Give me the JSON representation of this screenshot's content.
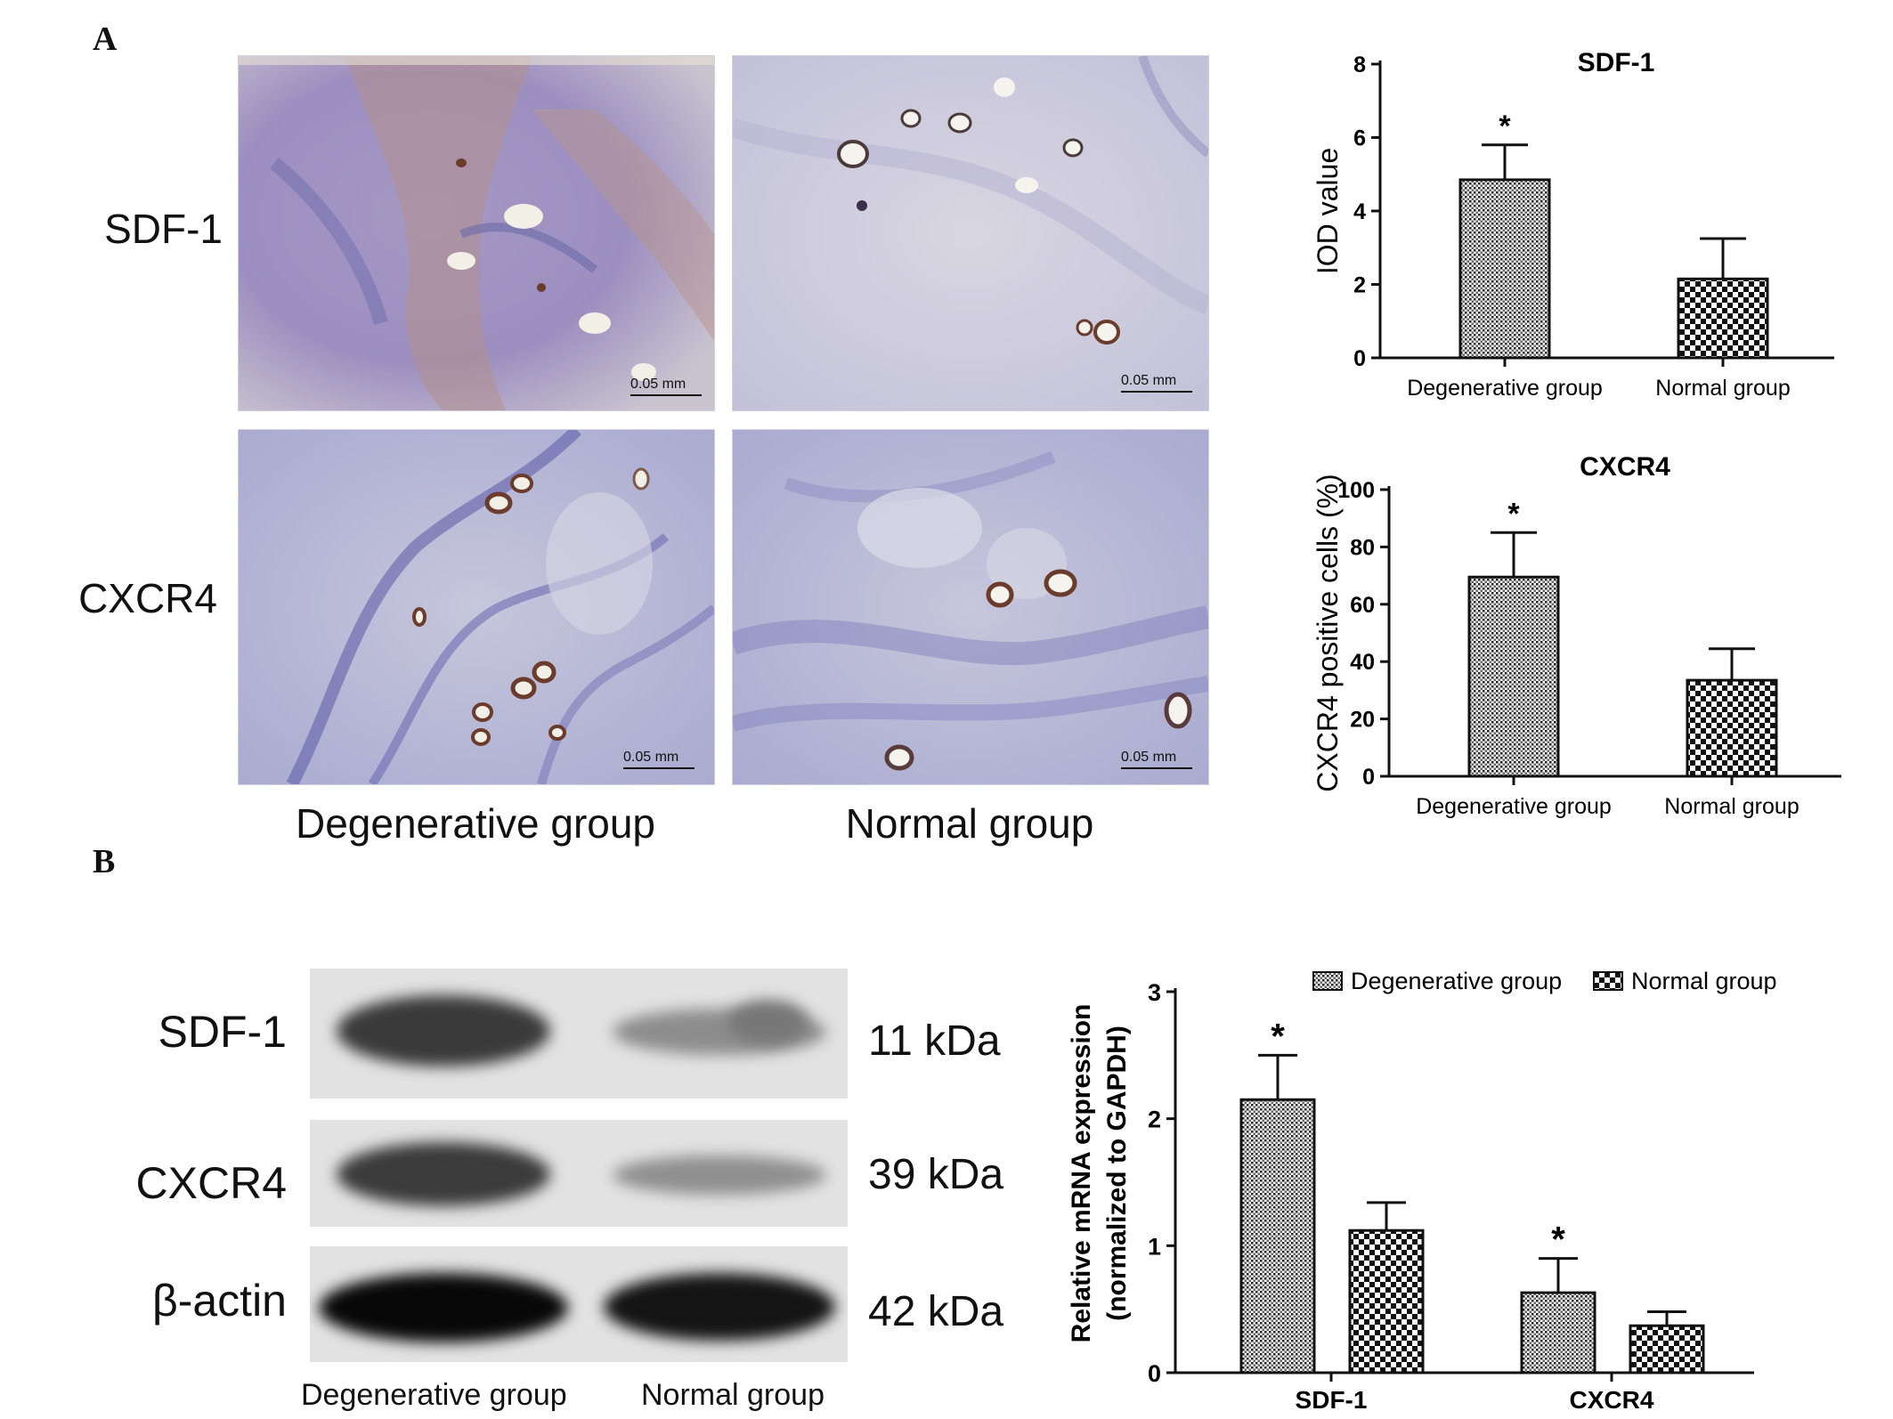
{
  "panel_a": {
    "letter": "A",
    "rows": [
      "SDF-1",
      "CXCR4"
    ],
    "groups": [
      "Degenerative group",
      "Normal group"
    ],
    "scale_bar": "0.05 mm"
  },
  "panel_b": {
    "letter": "B",
    "blot_rows": [
      {
        "label": "SDF-1",
        "kda": "11 kDa"
      },
      {
        "label": "CXCR4",
        "kda": "39 kDa"
      },
      {
        "label": "β-actin",
        "kda": "42 kDa"
      }
    ],
    "blot_groups": [
      "Degenerative group",
      "Normal group"
    ]
  },
  "colors": {
    "bar_edge": "#111111",
    "bar_fill_degenerative": "#9a9a9a",
    "bar_fill_normal": "#ffffff",
    "stain_purple": "#8f8cc4"
  },
  "chart_data": [
    {
      "type": "bar",
      "title": "SDF-1",
      "ylabel": "IOD value",
      "categories": [
        "Degenerative group",
        "Normal group"
      ],
      "values": [
        4.85,
        2.15
      ],
      "errors": [
        0.95,
        1.1
      ],
      "significance": [
        "*",
        ""
      ],
      "ylim": [
        0,
        8
      ],
      "yticks": [
        "0",
        "2",
        "4",
        "6",
        "8"
      ]
    },
    {
      "type": "bar",
      "title": "CXCR4",
      "ylabel": "CXCR4 positive cells (%)",
      "categories": [
        "Degenerative group",
        "Normal group"
      ],
      "values": [
        69.5,
        33.5
      ],
      "errors": [
        15.5,
        11
      ],
      "significance": [
        "*",
        ""
      ],
      "ylim": [
        0,
        100
      ],
      "yticks": [
        "0",
        "20",
        "40",
        "60",
        "80",
        "100"
      ]
    },
    {
      "type": "bar",
      "title": "",
      "ylabel": "Relative mRNA expression",
      "ylabel2": "(normalized to GAPDH)",
      "categories": [
        "SDF-1",
        "CXCR4"
      ],
      "series": [
        {
          "name": "Degenerative group",
          "values": [
            2.15,
            0.63
          ],
          "errors": [
            0.35,
            0.27
          ],
          "significance": [
            "*",
            "*"
          ]
        },
        {
          "name": "Normal group",
          "values": [
            1.12,
            0.37
          ],
          "errors": [
            0.22,
            0.11
          ],
          "significance": [
            "",
            ""
          ]
        }
      ],
      "ylim": [
        0,
        3
      ],
      "yticks": [
        "0",
        "1",
        "2",
        "3"
      ],
      "legend": "top"
    }
  ]
}
